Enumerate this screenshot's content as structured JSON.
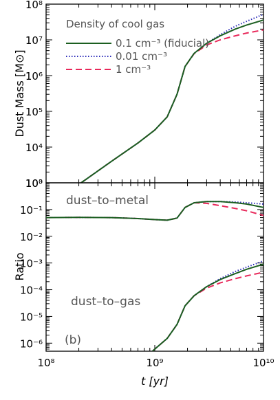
{
  "colors": {
    "fiducial": "#1b5e20",
    "low": "#2a2ab8",
    "high": "#e8285a",
    "annotation": "#555555"
  },
  "legend": {
    "title": "Density of cool gas",
    "entries": [
      {
        "key": "fiducial",
        "label": "0.1 cm⁻³ (fiducial)",
        "style": "solid"
      },
      {
        "key": "low",
        "label": "0.01 cm⁻³",
        "style": "dotted"
      },
      {
        "key": "high",
        "label": "1 cm⁻³",
        "style": "dashed"
      }
    ]
  },
  "chart_data": [
    {
      "type": "line",
      "panel": "top",
      "ylabel": "Dust Mass [M⊙]",
      "xscale": "log",
      "yscale": "log",
      "xlim": [
        100000000.0,
        10000000000.0
      ],
      "ylim": [
        1000.0,
        100000000.0
      ],
      "yticks": [
        {
          "v": 1000.0,
          "label": "10³"
        },
        {
          "v": 10000.0,
          "label": "10⁴"
        },
        {
          "v": 100000.0,
          "label": "10⁵"
        },
        {
          "v": 1000000.0,
          "label": "10⁶"
        },
        {
          "v": 10000000.0,
          "label": "10⁷"
        },
        {
          "v": 100000000.0,
          "label": "10⁸"
        }
      ],
      "legend_position": "top-left",
      "series": [
        {
          "key": "fiducial",
          "x": [
            210000000.0,
            400000000.0,
            700000000.0,
            1000000000.0,
            1300000000.0,
            1600000000.0,
            1900000000.0,
            2300000000.0,
            3000000000.0,
            4000000000.0,
            5500000000.0,
            7000000000.0,
            10000000000.0
          ],
          "y": [
            1000.0,
            4000.0,
            13000.0,
            30000.0,
            70000.0,
            300000.0,
            1800000.0,
            4200000.0,
            8000000.0,
            13000000.0,
            20000000.0,
            26000000.0,
            36000000.0
          ]
        },
        {
          "key": "low",
          "x": [
            210000000.0,
            400000000.0,
            700000000.0,
            1000000000.0,
            1300000000.0,
            1600000000.0,
            1900000000.0,
            2300000000.0,
            3000000000.0,
            4000000000.0,
            5500000000.0,
            7000000000.0,
            10000000000.0
          ],
          "y": [
            1000.0,
            4000.0,
            13000.0,
            30000.0,
            70000.0,
            300000.0,
            1800000.0,
            4200000.0,
            8000000.0,
            14000000.0,
            24000000.0,
            33000000.0,
            52000000.0
          ]
        },
        {
          "key": "high",
          "x": [
            210000000.0,
            400000000.0,
            700000000.0,
            1000000000.0,
            1300000000.0,
            1600000000.0,
            1900000000.0,
            2300000000.0,
            3000000000.0,
            4000000000.0,
            5500000000.0,
            7000000000.0,
            10000000000.0
          ],
          "y": [
            1000.0,
            4000.0,
            13000.0,
            30000.0,
            70000.0,
            300000.0,
            1800000.0,
            4100000.0,
            7200000.0,
            10000000.0,
            13000000.0,
            15500000.0,
            19000000.0
          ]
        }
      ]
    },
    {
      "type": "line",
      "panel": "bottom",
      "xlabel": "t [yr]",
      "ylabel": "Ratio",
      "xscale": "log",
      "yscale": "log",
      "xlim": [
        100000000.0,
        10000000000.0
      ],
      "ylim": [
        5e-07,
        1
      ],
      "xticks": [
        {
          "v": 100000000.0,
          "label": "10⁸"
        },
        {
          "v": 1000000000.0,
          "label": "10⁹"
        },
        {
          "v": 10000000000.0,
          "label": "10¹⁰"
        }
      ],
      "yticks": [
        {
          "v": 1e-06,
          "label": "10⁻⁶"
        },
        {
          "v": 1e-05,
          "label": "10⁻⁵"
        },
        {
          "v": 0.0001,
          "label": "10⁻⁴"
        },
        {
          "v": 0.001,
          "label": "10⁻³"
        },
        {
          "v": 0.01,
          "label": "10⁻²"
        },
        {
          "v": 0.1,
          "label": "10⁻¹"
        },
        {
          "v": 1,
          "label": "10⁰"
        }
      ],
      "annotations": [
        "dust–to–metal",
        "dust–to–gas",
        "(b)"
      ],
      "series": [
        {
          "key": "fiducial",
          "group": "dust-to-metal",
          "x": [
            100000000.0,
            200000000.0,
            400000000.0,
            700000000.0,
            1000000000.0,
            1300000000.0,
            1600000000.0,
            1900000000.0,
            2300000000.0,
            3000000000.0,
            4000000000.0,
            5500000000.0,
            7000000000.0,
            10000000000.0
          ],
          "y": [
            0.05,
            0.051,
            0.05,
            0.046,
            0.042,
            0.04,
            0.048,
            0.12,
            0.18,
            0.2,
            0.2,
            0.18,
            0.16,
            0.12
          ]
        },
        {
          "key": "low",
          "group": "dust-to-metal",
          "x": [
            100000000.0,
            200000000.0,
            400000000.0,
            700000000.0,
            1000000000.0,
            1300000000.0,
            1600000000.0,
            1900000000.0,
            2300000000.0,
            3000000000.0,
            4000000000.0,
            5500000000.0,
            7000000000.0,
            10000000000.0
          ],
          "y": [
            0.05,
            0.051,
            0.05,
            0.046,
            0.042,
            0.04,
            0.048,
            0.12,
            0.18,
            0.2,
            0.2,
            0.19,
            0.18,
            0.16
          ]
        },
        {
          "key": "high",
          "group": "dust-to-metal",
          "x": [
            100000000.0,
            200000000.0,
            400000000.0,
            700000000.0,
            1000000000.0,
            1300000000.0,
            1600000000.0,
            1900000000.0,
            2300000000.0,
            3000000000.0,
            4000000000.0,
            5500000000.0,
            7000000000.0,
            10000000000.0
          ],
          "y": [
            0.05,
            0.051,
            0.05,
            0.046,
            0.042,
            0.04,
            0.048,
            0.12,
            0.18,
            0.17,
            0.14,
            0.11,
            0.09,
            0.06
          ]
        },
        {
          "key": "fiducial",
          "group": "dust-to-gas",
          "x": [
            950000000.0,
            1300000000.0,
            1600000000.0,
            1900000000.0,
            2300000000.0,
            3000000000.0,
            4000000000.0,
            5500000000.0,
            7000000000.0,
            10000000000.0
          ],
          "y": [
            5e-07,
            1.5e-06,
            5e-06,
            2.5e-05,
            6e-05,
            0.00013,
            0.00024,
            0.0004,
            0.00058,
            0.0009
          ]
        },
        {
          "key": "low",
          "group": "dust-to-gas",
          "x": [
            950000000.0,
            1300000000.0,
            1600000000.0,
            1900000000.0,
            2300000000.0,
            3000000000.0,
            4000000000.0,
            5500000000.0,
            7000000000.0,
            10000000000.0
          ],
          "y": [
            5e-07,
            1.5e-06,
            5e-06,
            2.5e-05,
            6e-05,
            0.00013,
            0.00026,
            0.00048,
            0.0007,
            0.0012
          ]
        },
        {
          "key": "high",
          "group": "dust-to-gas",
          "x": [
            950000000.0,
            1300000000.0,
            1600000000.0,
            1900000000.0,
            2300000000.0,
            3000000000.0,
            4000000000.0,
            5500000000.0,
            7000000000.0,
            10000000000.0
          ],
          "y": [
            5e-07,
            1.5e-06,
            5e-06,
            2.5e-05,
            6e-05,
            0.000115,
            0.00018,
            0.00026,
            0.00033,
            0.00045
          ]
        }
      ]
    }
  ]
}
